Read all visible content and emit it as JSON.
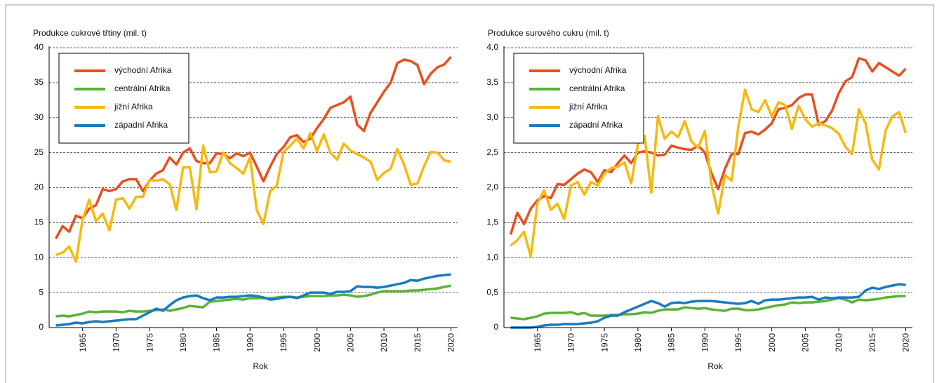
{
  "chart_data": [
    {
      "type": "line",
      "title": "Produkce cukrové třtiny (mil. t)",
      "x_label": "Rok",
      "x": [
        1961,
        1962,
        1963,
        1964,
        1965,
        1966,
        1967,
        1968,
        1969,
        1970,
        1971,
        1972,
        1973,
        1974,
        1975,
        1976,
        1977,
        1978,
        1979,
        1980,
        1981,
        1982,
        1983,
        1984,
        1985,
        1986,
        1987,
        1988,
        1989,
        1990,
        1991,
        1992,
        1993,
        1994,
        1995,
        1996,
        1997,
        1998,
        1999,
        2000,
        2001,
        2002,
        2003,
        2004,
        2005,
        2006,
        2007,
        2008,
        2009,
        2010,
        2011,
        2012,
        2013,
        2014,
        2015,
        2016,
        2017,
        2018,
        2019,
        2020
      ],
      "xlim": [
        1960,
        2021
      ],
      "xticks": [
        1965,
        1970,
        1975,
        1980,
        1985,
        1990,
        1995,
        2000,
        2005,
        2010,
        2015,
        2020
      ],
      "ylim": [
        0,
        40
      ],
      "yticks": [
        0,
        5,
        10,
        15,
        20,
        25,
        30,
        35,
        40
      ],
      "grid": true,
      "legend": "upper left",
      "series": [
        {
          "name": "východní Afrika",
          "color": "#e8501e",
          "values": [
            12.7,
            14.5,
            13.7,
            16,
            15.6,
            17,
            17.5,
            19.8,
            19.5,
            19.8,
            20.9,
            21.2,
            21.2,
            19.5,
            21,
            22,
            22.5,
            24.3,
            23.3,
            25,
            25.6,
            23.8,
            23.5,
            23.5,
            24.9,
            24.8,
            24.2,
            24.9,
            24.5,
            25,
            23,
            20.9,
            23,
            24.8,
            25.8,
            27.2,
            27.5,
            26.5,
            27,
            28.5,
            29.8,
            31.4,
            31.8,
            32.2,
            33,
            29,
            28.1,
            30.7,
            32.2,
            33.7,
            35,
            37.8,
            38.3,
            38.1,
            37.5,
            34.8,
            36.3,
            37.2,
            37.6,
            38.7
          ]
        },
        {
          "name": "centrální Afrika",
          "color": "#5bb336",
          "values": [
            1.6,
            1.7,
            1.6,
            1.8,
            2.0,
            2.3,
            2.2,
            2.3,
            2.3,
            2.3,
            2.2,
            2.4,
            2.3,
            2.3,
            2.4,
            2.5,
            2.6,
            2.4,
            2.6,
            2.8,
            3.1,
            3.0,
            2.9,
            3.7,
            3.8,
            3.9,
            4.0,
            4.1,
            4.0,
            4.2,
            4.2,
            4.2,
            4.2,
            4.3,
            4.4,
            4.4,
            4.3,
            4.4,
            4.5,
            4.5,
            4.5,
            4.6,
            4.6,
            4.7,
            4.6,
            4.4,
            4.5,
            4.7,
            5.0,
            5.2,
            5.2,
            5.2,
            5.2,
            5.3,
            5.3,
            5.4,
            5.5,
            5.6,
            5.8,
            6.0
          ]
        },
        {
          "name": "jižní Afrika",
          "color": "#f7b90f",
          "values": [
            10.4,
            10.7,
            11.6,
            9.4,
            15.5,
            18.3,
            15.2,
            16.3,
            13.9,
            18.3,
            18.5,
            17,
            18.7,
            18.7,
            21.1,
            21,
            21.2,
            20.5,
            16.8,
            22.9,
            22.9,
            16.9,
            26,
            22.2,
            22.3,
            25,
            23.5,
            22.8,
            22,
            24.3,
            16.8,
            14.8,
            19.5,
            20.3,
            25.1,
            26,
            27,
            25.6,
            27.8,
            25.2,
            27.6,
            25,
            24,
            26.3,
            25.3,
            24.8,
            24.3,
            23.7,
            21.1,
            22.1,
            22.7,
            25.5,
            23.3,
            20.4,
            20.6,
            23.1,
            25.1,
            25,
            23.9,
            23.7
          ]
        },
        {
          "name": "západní Afrika",
          "color": "#1a7bbf",
          "values": [
            0.3,
            0.4,
            0.5,
            0.7,
            0.6,
            0.8,
            0.9,
            0.8,
            0.9,
            1.0,
            1.1,
            1.2,
            1.2,
            1.7,
            2.2,
            2.7,
            2.4,
            3.2,
            3.9,
            4.3,
            4.5,
            4.6,
            4.2,
            3.9,
            4.3,
            4.3,
            4.4,
            4.4,
            4.5,
            4.6,
            4.5,
            4.3,
            4.0,
            4.1,
            4.3,
            4.4,
            4.2,
            4.6,
            5.0,
            5.0,
            5.0,
            4.8,
            5.1,
            5.1,
            5.2,
            5.9,
            5.8,
            5.8,
            5.7,
            5.8,
            6.0,
            6.2,
            6.4,
            6.8,
            6.7,
            7.0,
            7.2,
            7.4,
            7.5,
            7.6
          ]
        }
      ]
    },
    {
      "type": "line",
      "title": "Produkce surového cukru (mil. t)",
      "x_label": "Rok",
      "x": [
        1961,
        1962,
        1963,
        1964,
        1965,
        1966,
        1967,
        1968,
        1969,
        1970,
        1971,
        1972,
        1973,
        1974,
        1975,
        1976,
        1977,
        1978,
        1979,
        1980,
        1981,
        1982,
        1983,
        1984,
        1985,
        1986,
        1987,
        1988,
        1989,
        1990,
        1991,
        1992,
        1993,
        1994,
        1995,
        1996,
        1997,
        1998,
        1999,
        2000,
        2001,
        2002,
        2003,
        2004,
        2005,
        2006,
        2007,
        2008,
        2009,
        2010,
        2011,
        2012,
        2013,
        2014,
        2015,
        2016,
        2017,
        2018,
        2019,
        2020
      ],
      "xlim": [
        1960,
        2021
      ],
      "xticks": [
        1965,
        1970,
        1975,
        1980,
        1985,
        1990,
        1995,
        2000,
        2005,
        2010,
        2015,
        2020
      ],
      "ylim": [
        0,
        4
      ],
      "yticks": [
        0,
        {
          "value": 0.5,
          "label": "0,5"
        },
        {
          "value": 1,
          "label": "1,0"
        },
        {
          "value": 1.5,
          "label": "1,5"
        },
        {
          "value": 2,
          "label": "2,0"
        },
        {
          "value": 2.5,
          "label": "2,5"
        },
        {
          "value": 3,
          "label": "3,0"
        },
        {
          "value": 3.5,
          "label": "3,5"
        },
        {
          "value": 4,
          "label": "4,0"
        }
      ],
      "grid": true,
      "legend": "upper left",
      "series": [
        {
          "name": "východní Afrika",
          "color": "#e8501e",
          "values": [
            1.33,
            1.64,
            1.48,
            1.7,
            1.82,
            1.88,
            1.85,
            2.05,
            2.04,
            2.12,
            2.2,
            2.26,
            2.22,
            2.08,
            2.25,
            2.22,
            2.35,
            2.46,
            2.35,
            2.5,
            2.52,
            2.5,
            2.46,
            2.47,
            2.6,
            2.57,
            2.55,
            2.54,
            2.6,
            2.5,
            2.2,
            1.98,
            2.27,
            2.48,
            2.48,
            2.78,
            2.8,
            2.76,
            2.83,
            2.92,
            3.12,
            3.14,
            3.18,
            3.28,
            3.33,
            3.33,
            2.9,
            2.95,
            3.1,
            3.35,
            3.52,
            3.58,
            3.85,
            3.82,
            3.66,
            3.78,
            3.72,
            3.66,
            3.6,
            3.7
          ]
        },
        {
          "name": "centrální Afrika",
          "color": "#5bb336",
          "values": [
            0.14,
            0.13,
            0.12,
            0.14,
            0.16,
            0.2,
            0.21,
            0.21,
            0.21,
            0.22,
            0.19,
            0.21,
            0.17,
            0.17,
            0.17,
            0.18,
            0.18,
            0.19,
            0.19,
            0.2,
            0.22,
            0.21,
            0.24,
            0.26,
            0.26,
            0.26,
            0.29,
            0.28,
            0.27,
            0.28,
            0.26,
            0.25,
            0.24,
            0.27,
            0.27,
            0.25,
            0.25,
            0.26,
            0.28,
            0.3,
            0.32,
            0.33,
            0.36,
            0.35,
            0.36,
            0.36,
            0.37,
            0.38,
            0.4,
            0.42,
            0.4,
            0.36,
            0.4,
            0.39,
            0.4,
            0.41,
            0.43,
            0.44,
            0.45,
            0.45
          ]
        },
        {
          "name": "jižní Afrika",
          "color": "#f7b90f",
          "values": [
            1.17,
            1.25,
            1.37,
            1.02,
            1.78,
            1.96,
            1.68,
            1.77,
            1.55,
            2.03,
            2.08,
            1.9,
            2.08,
            2.03,
            2.2,
            2.28,
            2.3,
            2.36,
            2.06,
            2.62,
            2.74,
            1.93,
            3.02,
            2.7,
            2.8,
            2.72,
            2.95,
            2.66,
            2.57,
            2.81,
            2.04,
            1.63,
            2.18,
            2.1,
            2.87,
            3.4,
            3.12,
            3.08,
            3.25,
            3.02,
            3.22,
            3.18,
            2.84,
            3.17,
            2.98,
            2.87,
            2.92,
            2.89,
            2.85,
            2.77,
            2.58,
            2.48,
            3.12,
            2.92,
            2.4,
            2.26,
            2.82,
            3.02,
            3.08,
            2.78
          ]
        },
        {
          "name": "západní Afrika",
          "color": "#1a7bbf",
          "values": [
            0.0,
            0.0,
            0.0,
            0.0,
            0.01,
            0.03,
            0.04,
            0.04,
            0.05,
            0.05,
            0.05,
            0.06,
            0.07,
            0.09,
            0.14,
            0.17,
            0.17,
            0.22,
            0.26,
            0.3,
            0.34,
            0.38,
            0.35,
            0.3,
            0.35,
            0.36,
            0.35,
            0.37,
            0.38,
            0.38,
            0.38,
            0.37,
            0.36,
            0.35,
            0.34,
            0.35,
            0.38,
            0.34,
            0.39,
            0.4,
            0.4,
            0.41,
            0.42,
            0.43,
            0.43,
            0.44,
            0.4,
            0.43,
            0.42,
            0.43,
            0.43,
            0.43,
            0.44,
            0.53,
            0.57,
            0.55,
            0.58,
            0.6,
            0.62,
            0.61
          ]
        }
      ]
    }
  ]
}
